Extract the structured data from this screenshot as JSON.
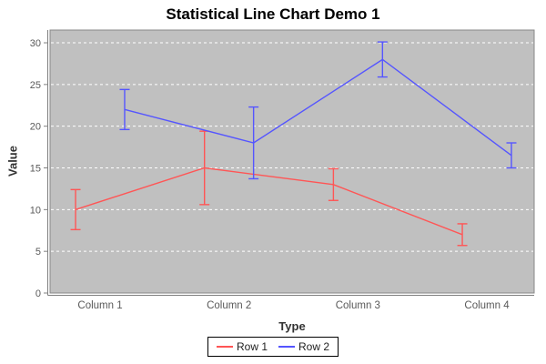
{
  "chart_data": {
    "type": "line",
    "title": "Statistical Line Chart Demo 1",
    "xlabel": "Type",
    "ylabel": "Value",
    "categories": [
      "Column 1",
      "Column 2",
      "Column 3",
      "Column 4"
    ],
    "series": [
      {
        "name": "Row 1",
        "color": "#ff5555",
        "means": [
          10.0,
          15.0,
          13.0,
          7.0
        ],
        "errors": [
          2.4,
          4.4,
          1.9,
          1.3
        ]
      },
      {
        "name": "Row 2",
        "color": "#5555ff",
        "means": [
          22.0,
          18.0,
          28.0,
          16.5
        ],
        "errors": [
          2.4,
          4.3,
          2.1,
          1.5
        ]
      }
    ],
    "error_bars": true,
    "markers": false,
    "yticks": [
      0,
      5,
      10,
      15,
      20,
      25,
      30
    ],
    "ylim": [
      0,
      31.5
    ],
    "grid": true,
    "gridline_style": "dashed",
    "legend_position": "bottom",
    "colors": {
      "plot_background": "#c0c0c0",
      "gridline": "#ffffff",
      "axis": "#808080",
      "plot_border": "#888888",
      "tick_label": "#595959",
      "title": "#000000",
      "axis_label": "#333333",
      "legend_border": "#000000",
      "legend_background": "#ffffff"
    }
  }
}
